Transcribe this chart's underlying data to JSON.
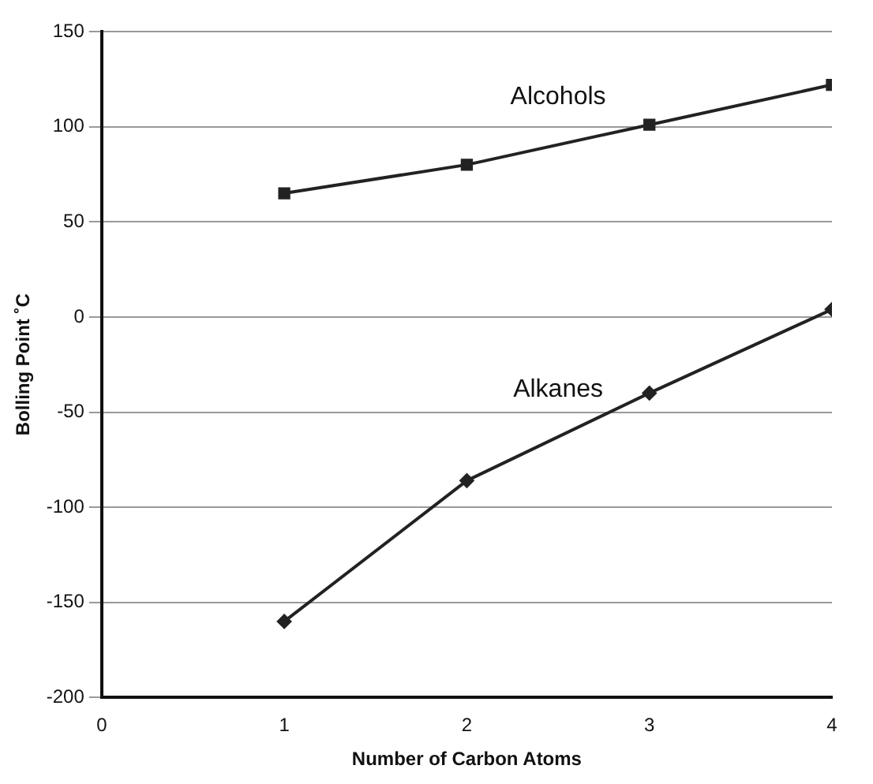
{
  "chart_data": {
    "type": "line",
    "xlabel": "Number of Carbon Atoms",
    "ylabel": "Bolling Point ˚C",
    "x": [
      1,
      2,
      3,
      4
    ],
    "series": [
      {
        "name": "Alcohols",
        "color": "#222222",
        "marker": "square",
        "values": [
          65,
          80,
          101,
          122
        ]
      },
      {
        "name": "Alkanes",
        "color": "#222222",
        "marker": "diamond",
        "values": [
          -160,
          -86,
          -40,
          4
        ]
      }
    ],
    "xlim": [
      0,
      4
    ],
    "xticks": [
      0,
      1,
      2,
      3,
      4
    ],
    "ylim": [
      -200,
      150
    ],
    "yticks": [
      -200,
      -150,
      -100,
      -50,
      0,
      50,
      100,
      150
    ],
    "grid": "y",
    "legend": false
  }
}
